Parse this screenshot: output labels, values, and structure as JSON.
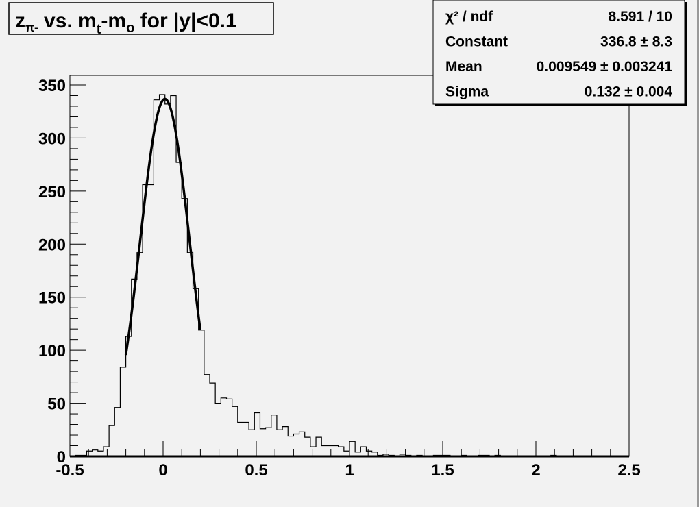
{
  "chart_data": {
    "type": "bar",
    "style": "step-histogram",
    "title": "z_π- vs. m_t-m_o for |y|<0.1",
    "title_parts": {
      "main": "z",
      "sub1": "π-",
      "mid": " vs. m",
      "sub2": "t",
      "mid2": "-m",
      "sub3": "o",
      "tail": " for |y|<0.1"
    },
    "xlabel": "",
    "ylabel": "",
    "xlim": [
      -0.5,
      2.5
    ],
    "ylim": [
      0,
      350
    ],
    "bin_width": 0.03,
    "x_ticks": [
      "-0.5",
      "0",
      "0.5",
      "1",
      "1.5",
      "2",
      "2.5"
    ],
    "y_ticks": [
      "0",
      "50",
      "100",
      "150",
      "200",
      "250",
      "300",
      "350"
    ],
    "grid": false,
    "values": [
      0,
      1,
      1,
      5,
      6,
      5,
      9,
      29,
      46,
      84,
      113,
      167,
      192,
      256,
      256,
      336,
      341,
      332,
      340,
      277,
      243,
      192,
      158,
      119,
      77,
      69,
      50,
      55,
      54,
      47,
      32,
      32,
      25,
      41,
      26,
      27,
      39,
      25,
      28,
      19,
      21,
      23,
      18,
      9,
      18,
      10,
      10,
      10,
      9,
      5,
      14,
      4,
      9,
      5,
      4,
      1,
      2,
      1,
      0,
      2,
      1,
      0,
      1,
      0,
      0,
      1,
      1,
      1,
      0,
      0,
      1,
      0,
      0,
      1,
      1,
      0,
      1,
      0,
      0,
      0,
      0,
      0,
      0,
      0,
      0,
      0,
      1,
      0,
      0,
      0,
      0,
      0,
      0,
      0,
      0,
      0,
      0,
      0,
      0,
      0
    ],
    "fit": {
      "function": "gaus",
      "constant": 336.8,
      "mean": 0.009549,
      "sigma": 0.132,
      "range": [
        -0.2,
        0.2
      ]
    },
    "stats_box": {
      "position": "top-right",
      "rows": [
        {
          "label": "χ² / ndf",
          "value": "8.591 / 10"
        },
        {
          "label": "Constant",
          "value": "336.8 ± 8.3"
        },
        {
          "label": "Mean",
          "value": "0.009549 ± 0.003241"
        },
        {
          "label": "Sigma",
          "value": "0.132 ± 0.004"
        }
      ]
    },
    "colors": {
      "background": "#f2f2f2",
      "line": "#000000"
    }
  }
}
